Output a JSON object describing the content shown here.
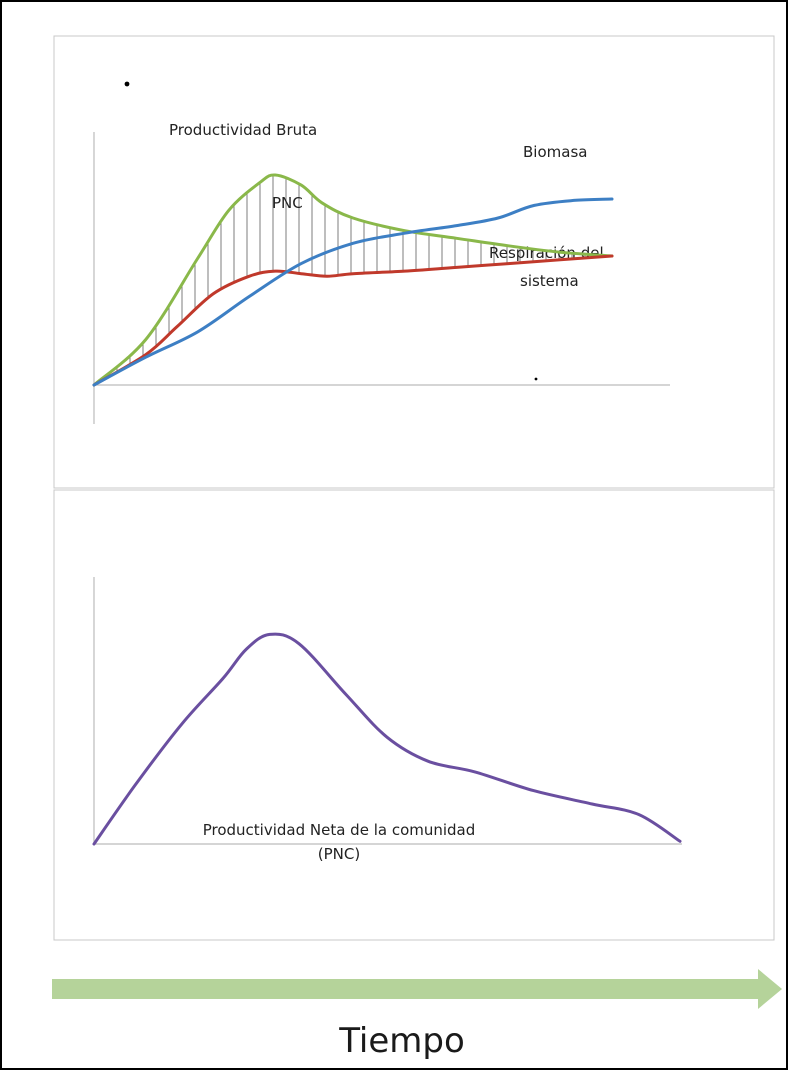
{
  "chart_data": [
    {
      "type": "line",
      "x_domain": [
        0,
        10
      ],
      "y_domain": [
        0,
        10
      ],
      "grid": false,
      "legend": "none",
      "series": [
        {
          "name": "Productividad Bruta",
          "color": "#8ab84a",
          "points": [
            [
              0,
              0
            ],
            [
              1,
              1.8
            ],
            [
              2,
              5
            ],
            [
              2.6,
              6.9
            ],
            [
              3.2,
              8
            ],
            [
              3.5,
              8.3
            ],
            [
              4,
              7.9
            ],
            [
              4.4,
              7.2
            ],
            [
              5,
              6.6
            ],
            [
              6,
              6.1
            ],
            [
              7,
              5.8
            ],
            [
              8,
              5.5
            ],
            [
              9,
              5.25
            ],
            [
              10,
              5.1
            ]
          ]
        },
        {
          "name": "Respiración del sistema",
          "color": "#c0392b",
          "points": [
            [
              0,
              0
            ],
            [
              1,
              1.2
            ],
            [
              1.6,
              2.3
            ],
            [
              2.3,
              3.6
            ],
            [
              3,
              4.3
            ],
            [
              3.5,
              4.5
            ],
            [
              4,
              4.4
            ],
            [
              4.5,
              4.3
            ],
            [
              5,
              4.4
            ],
            [
              6,
              4.5
            ],
            [
              7,
              4.65
            ],
            [
              8,
              4.8
            ],
            [
              9,
              4.95
            ],
            [
              10,
              5.1
            ]
          ]
        },
        {
          "name": "Biomasa",
          "color": "#3d7fc4",
          "points": [
            [
              0,
              0
            ],
            [
              1,
              1.1
            ],
            [
              2,
              2.1
            ],
            [
              3,
              3.5
            ],
            [
              4,
              4.8
            ],
            [
              5,
              5.6
            ],
            [
              6,
              6.0
            ],
            [
              7,
              6.3
            ],
            [
              7.8,
              6.6
            ],
            [
              8.5,
              7.1
            ],
            [
              9.3,
              7.3
            ],
            [
              10,
              7.35
            ]
          ]
        }
      ],
      "annotations": {
        "productividad_bruta": "Productividad Bruta",
        "biomasa": "Biomasa",
        "pnc": "PNC",
        "respiracion_line1": "Respiración del",
        "respiracion_line2": "sistema"
      }
    },
    {
      "type": "line",
      "x_domain": [
        0,
        10
      ],
      "y_domain": [
        0,
        10
      ],
      "grid": false,
      "legend": "none",
      "series": [
        {
          "name": "Productividad Neta de la comunidad (PNC)",
          "color": "#6a4fa0",
          "points": [
            [
              0,
              0
            ],
            [
              0.7,
              2.2
            ],
            [
              1.5,
              4.5
            ],
            [
              2.2,
              6.2
            ],
            [
              2.6,
              7.3
            ],
            [
              3.0,
              7.85
            ],
            [
              3.5,
              7.5
            ],
            [
              4.3,
              5.6
            ],
            [
              5.0,
              4.0
            ],
            [
              5.7,
              3.1
            ],
            [
              6.5,
              2.7
            ],
            [
              7.5,
              2.0
            ],
            [
              8.5,
              1.5
            ],
            [
              9.3,
              1.1
            ],
            [
              10,
              0.1
            ]
          ]
        }
      ],
      "annotations": {
        "label_line1": "Productividad Neta de la comunidad",
        "label_line2": "(PNC)"
      }
    }
  ],
  "time_axis": {
    "label": "Tiempo",
    "arrow_color": "#b5d39a"
  }
}
